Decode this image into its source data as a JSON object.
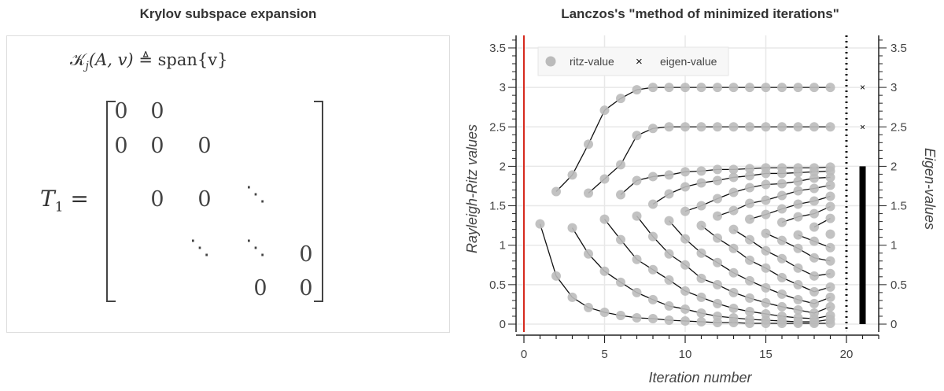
{
  "left_panel": {
    "title": "Krylov subspace expansion",
    "krylov": {
      "symbol": "𝒦",
      "sub": "j",
      "args": "(A, v)",
      "rel": "≜",
      "rhs": "span{v}"
    },
    "t_label": {
      "symbol": "T",
      "sub": "1",
      "eq": "="
    },
    "matrix_entries": [
      "0",
      "0",
      "0",
      "0",
      "0",
      "0",
      "0",
      "0",
      "0",
      "0"
    ],
    "dots": [
      "⋱",
      "⋱",
      "⋱"
    ]
  },
  "chart_data": {
    "type": "scatter",
    "title": "Lanczos's \"method of minimized iterations\"",
    "xlabel": "Iteration number",
    "ylabel": "Rayleigh-Ritz values",
    "ylabel_right": "Eigen-values",
    "xlim": [
      0,
      22
    ],
    "ylim": [
      -0.05,
      3.65
    ],
    "xticks": [
      0,
      5,
      10,
      15,
      20
    ],
    "yticks": [
      0,
      0.5,
      1,
      1.5,
      2,
      2.5,
      3,
      3.5
    ],
    "ytick_labels": [
      "0",
      "0.5",
      "1",
      "1.5",
      "2",
      "2.5",
      "3",
      "3.5"
    ],
    "grid": true,
    "legend": {
      "placement": "top-left",
      "entries": [
        "ritz-value",
        "eigen-value"
      ]
    },
    "colors": {
      "ritz": "#bbbbbb",
      "line": "#111111",
      "eigen": "#000000",
      "zero_line": "#d62a1e"
    },
    "separator_x": 20,
    "eigen_x": 21,
    "eigen_values": [
      3.0,
      2.5
    ],
    "eigen_dense_range": [
      0,
      2
    ],
    "ritz_values": [
      [
        1.27
      ],
      [
        0.61,
        1.68
      ],
      [
        0.34,
        1.22,
        1.89
      ],
      [
        0.21,
        0.89,
        1.66,
        2.28
      ],
      [
        0.15,
        0.67,
        1.33,
        1.84,
        2.71
      ],
      [
        0.11,
        0.53,
        1.07,
        1.64,
        2.02,
        2.86
      ],
      [
        0.08,
        0.4,
        0.82,
        1.37,
        1.82,
        2.39,
        2.97
      ],
      [
        0.07,
        0.31,
        0.69,
        1.11,
        1.52,
        1.87,
        2.48,
        3.0
      ],
      [
        0.05,
        0.23,
        0.56,
        0.89,
        1.31,
        1.65,
        1.89,
        2.5,
        3.0
      ],
      [
        0.04,
        0.19,
        0.42,
        0.75,
        1.08,
        1.43,
        1.74,
        1.93,
        2.5,
        3.0
      ],
      [
        0.03,
        0.14,
        0.34,
        0.58,
        0.9,
        1.25,
        1.5,
        1.79,
        1.94,
        2.5,
        3.0
      ],
      [
        0.02,
        0.1,
        0.26,
        0.5,
        0.78,
        1.09,
        1.37,
        1.59,
        1.82,
        1.96,
        2.5,
        3.0
      ],
      [
        0.02,
        0.08,
        0.2,
        0.4,
        0.65,
        0.96,
        1.2,
        1.44,
        1.67,
        1.86,
        1.96,
        2.5,
        3.0
      ],
      [
        0.01,
        0.06,
        0.16,
        0.33,
        0.55,
        0.81,
        1.07,
        1.33,
        1.53,
        1.73,
        1.88,
        1.97,
        2.5,
        3.0
      ],
      [
        0.01,
        0.05,
        0.13,
        0.27,
        0.46,
        0.71,
        0.93,
        1.15,
        1.39,
        1.57,
        1.77,
        1.91,
        1.98,
        2.5,
        3.0
      ],
      [
        0.01,
        0.04,
        0.1,
        0.22,
        0.38,
        0.59,
        0.83,
        1.06,
        1.29,
        1.46,
        1.63,
        1.78,
        1.91,
        1.98,
        2.5,
        3.0
      ],
      [
        0.01,
        0.03,
        0.08,
        0.18,
        0.31,
        0.5,
        0.71,
        0.96,
        1.13,
        1.36,
        1.52,
        1.69,
        1.81,
        1.92,
        1.98,
        2.5,
        3.0
      ],
      [
        0.01,
        0.03,
        0.07,
        0.14,
        0.26,
        0.41,
        0.61,
        0.84,
        1.05,
        1.23,
        1.4,
        1.56,
        1.72,
        1.85,
        1.93,
        1.98,
        2.5,
        3.0
      ],
      [
        0.01,
        0.06,
        0.11,
        0.22,
        0.34,
        0.47,
        0.64,
        0.8,
        0.97,
        1.14,
        1.34,
        1.49,
        1.62,
        1.76,
        1.86,
        1.94,
        1.99,
        2.5,
        3.0
      ]
    ]
  }
}
